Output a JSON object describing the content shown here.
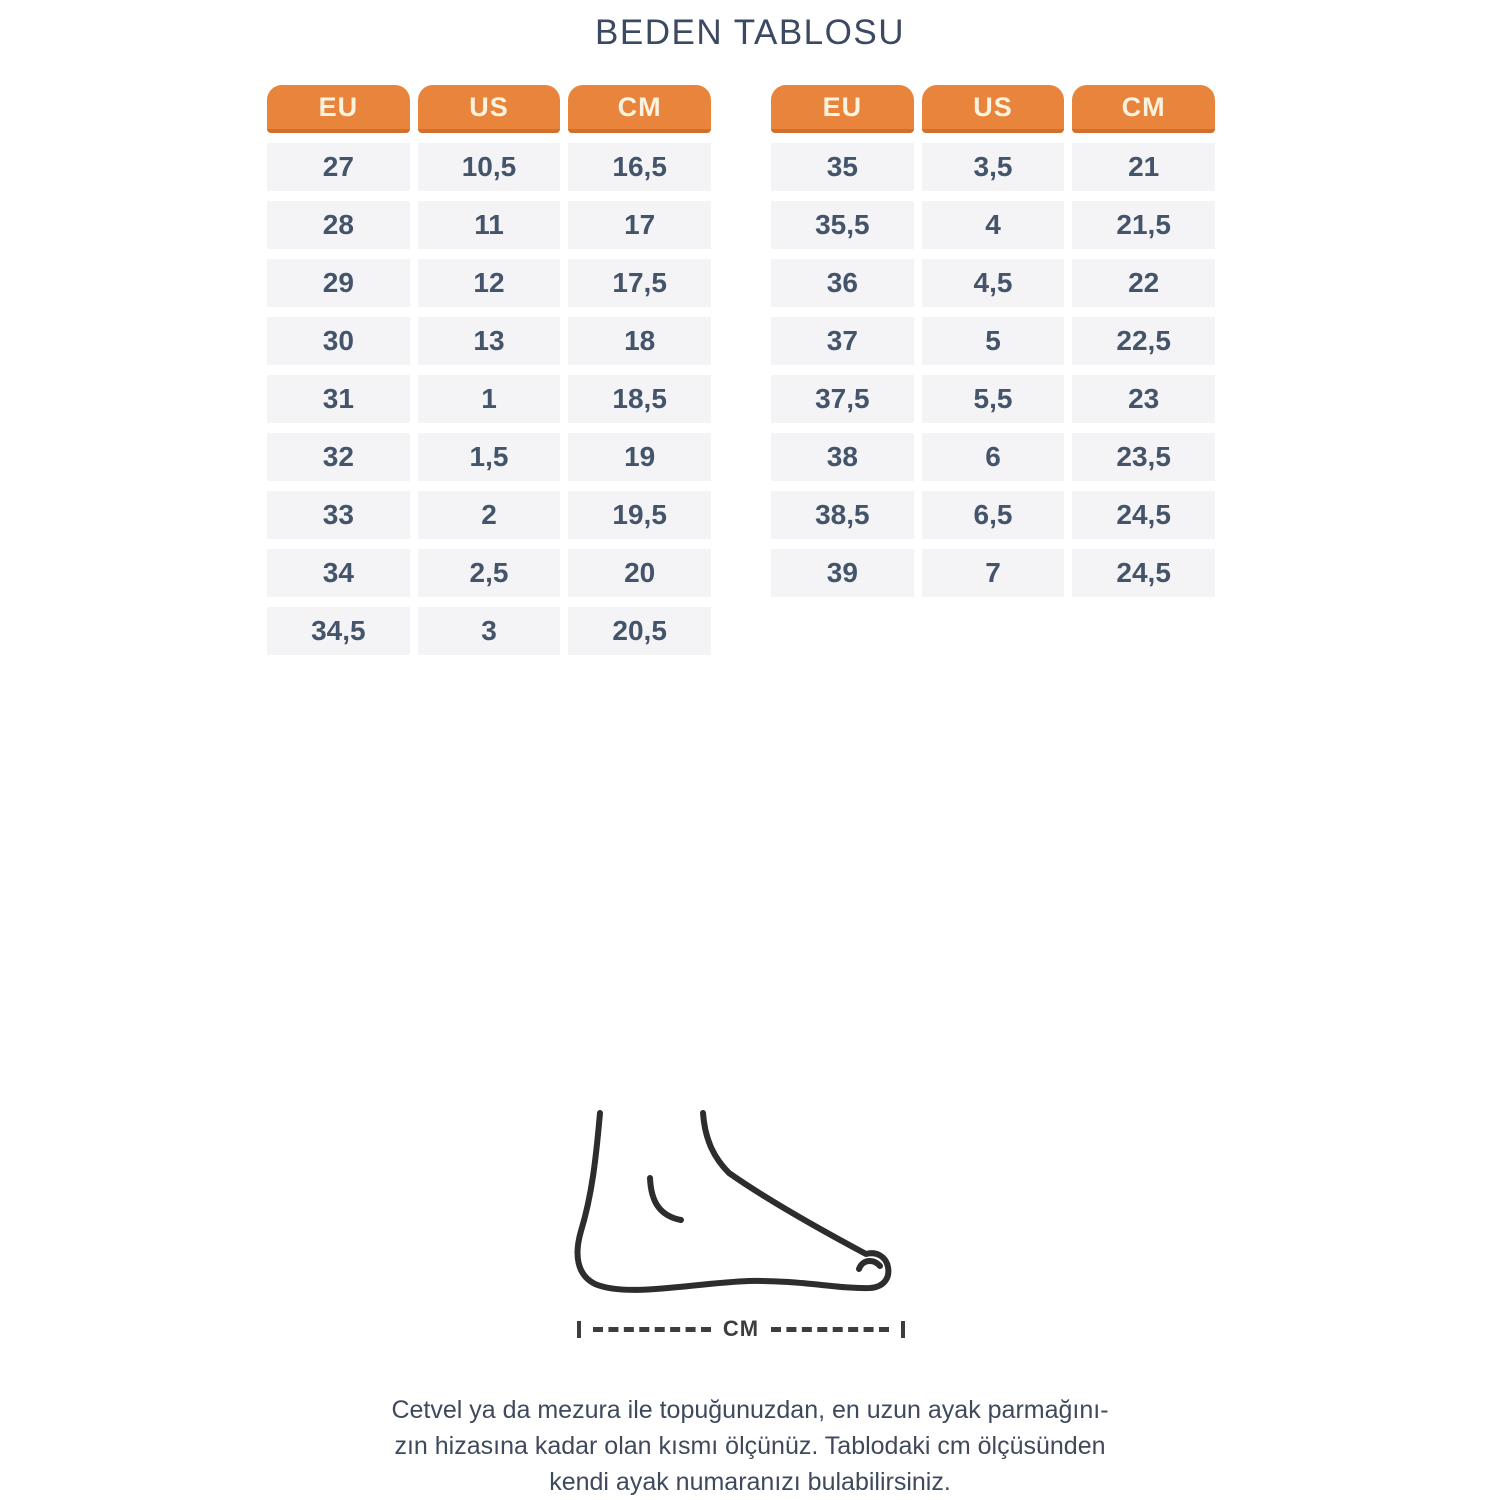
{
  "title": "BEDEN TABLOSU",
  "chart_data": [
    {
      "type": "table",
      "title": "BEDEN TABLOSU (sol tablo)",
      "columns": [
        "EU",
        "US",
        "CM"
      ],
      "rows": [
        [
          "27",
          "10,5",
          "16,5"
        ],
        [
          "28",
          "11",
          "17"
        ],
        [
          "29",
          "12",
          "17,5"
        ],
        [
          "30",
          "13",
          "18"
        ],
        [
          "31",
          "1",
          "18,5"
        ],
        [
          "32",
          "1,5",
          "19"
        ],
        [
          "33",
          "2",
          "19,5"
        ],
        [
          "34",
          "2,5",
          "20"
        ],
        [
          "34,5",
          "3",
          "20,5"
        ]
      ]
    },
    {
      "type": "table",
      "title": "BEDEN TABLOSU (sağ tablo)",
      "columns": [
        "EU",
        "US",
        "CM"
      ],
      "rows": [
        [
          "35",
          "3,5",
          "21"
        ],
        [
          "35,5",
          "4",
          "21,5"
        ],
        [
          "36",
          "4,5",
          "22"
        ],
        [
          "37",
          "5",
          "22,5"
        ],
        [
          "37,5",
          "5,5",
          "23"
        ],
        [
          "38",
          "6",
          "23,5"
        ],
        [
          "38,5",
          "6,5",
          "24,5"
        ],
        [
          "39",
          "7",
          "24,5"
        ]
      ]
    }
  ],
  "measure_diagram": {
    "icon": "foot-outline-icon",
    "line_label": "CM"
  },
  "instructions": {
    "lines": [
      "Cetvel ya da mezura ile topuğunuzdan, en uzun ayak parmağını-",
      "zın hizasına kadar olan kısmı ölçünüz. Tablodaki cm ölçüsünden",
      "kendi ayak numaranızı bulabilirsiniz."
    ]
  },
  "colors": {
    "header_bg": "#e8843c",
    "header_bg_border": "#d2702b",
    "header_text": "#fbf2df",
    "row_bg": "#f4f4f6",
    "value_text": "#44546a",
    "title_text": "#3c4962",
    "body_text": "#3e4a5c",
    "line_color": "#3d3d3d",
    "foot_stroke": "#2d2d2d"
  }
}
